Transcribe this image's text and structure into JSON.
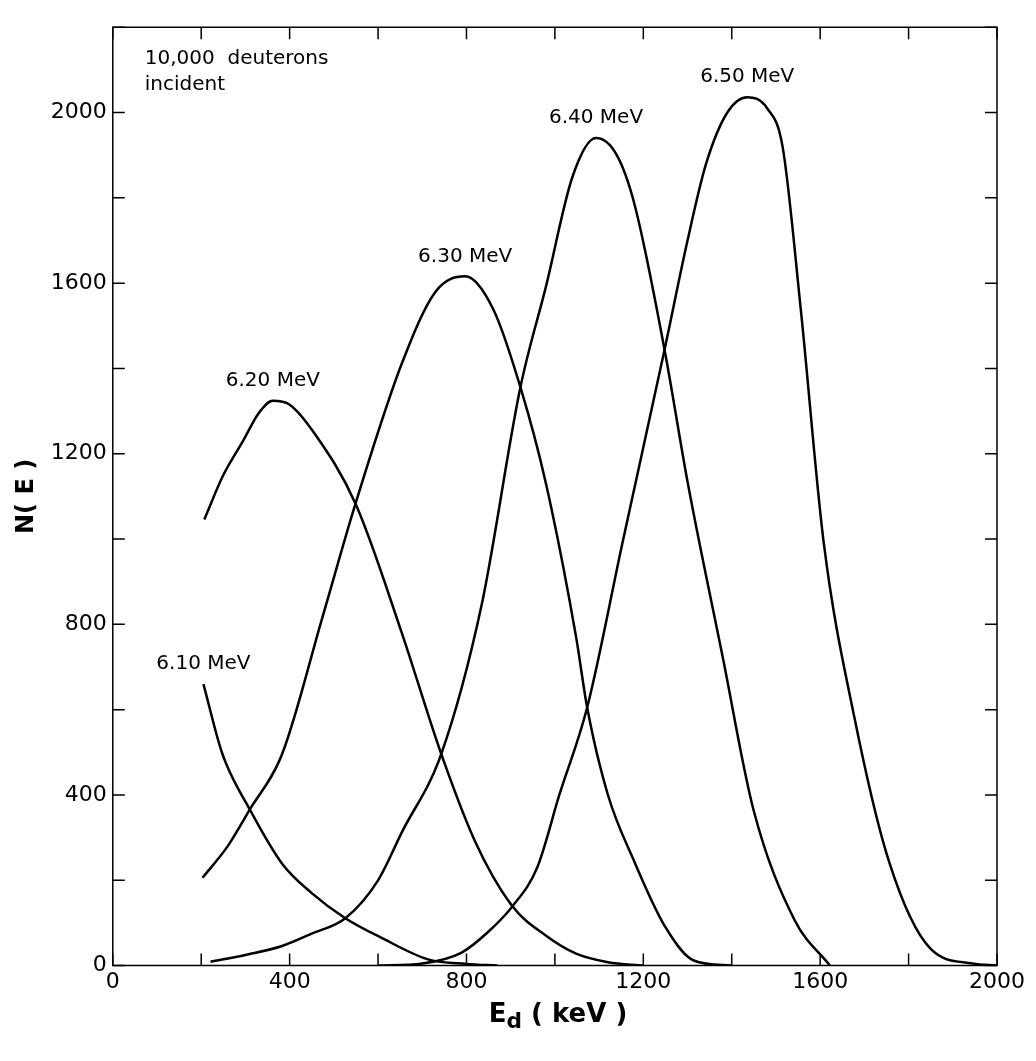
{
  "chart_data": {
    "type": "line",
    "xlabel": "E$_{d}$ ( keV )",
    "ylabel": "N( E )",
    "annotations": [
      "10,000  deuterons\nincident"
    ],
    "xlim": [
      0,
      2000
    ],
    "ylim": [
      0,
      2200
    ],
    "xticks": [
      0,
      {
        "value": 200,
        "label": null
      },
      400,
      {
        "value": 600,
        "label": null
      },
      800,
      {
        "value": 1000,
        "label": null
      },
      1200,
      {
        "value": 1400,
        "label": null
      },
      1600,
      {
        "value": 1800,
        "label": null
      },
      2000
    ],
    "yticks": [
      0,
      {
        "value": 200,
        "label": null
      },
      400,
      {
        "value": 600,
        "label": null
      },
      800,
      {
        "value": 1000,
        "label": null
      },
      1200,
      {
        "value": 1400,
        "label": null
      },
      1600,
      {
        "value": 1800,
        "label": null
      },
      2000,
      {
        "value": 2200,
        "label": null
      }
    ],
    "grid": false,
    "legend": false,
    "marker": "none",
    "line_style": "solid",
    "series": [
      {
        "name": "6.10 MeV",
        "color": "#000000",
        "x": [
          205,
          248,
          310,
          383,
          450,
          526,
          608,
          715,
          800,
          870
        ],
        "values": [
          660,
          496,
          366,
          239,
          170,
          111,
          65,
          14,
          4,
          0
        ]
      },
      {
        "name": "6.20 MeV",
        "color": "#000000",
        "x": [
          207,
          250,
          294,
          330,
          362,
          400,
          456,
          549,
          654,
          743,
          820,
          904,
          980,
          1048,
          1120,
          1200
        ],
        "values": [
          1046,
          1150,
          1229,
          1295,
          1324,
          1315,
          1248,
          1083,
          779,
          496,
          290,
          139,
          70,
          28,
          8,
          0
        ]
      },
      {
        "name": "6.30 MeV",
        "color": "#000000",
        "x": [
          203,
          260,
          310,
          383,
          474,
          549,
          654,
          730,
          797,
          860,
          922,
          980,
          1048,
          1073,
          1120,
          1180,
          1250,
          1314,
          1400
        ],
        "values": [
          206,
          280,
          366,
          496,
          816,
          1083,
          1412,
          1580,
          1616,
          1540,
          1356,
          1129,
          770,
          605,
          400,
          243,
          90,
          12,
          0
        ]
      },
      {
        "name": "6.40 MeV",
        "color": "#000000",
        "x": [
          221,
          300,
          383,
          450,
          526,
          600,
          654,
          743,
          834,
          922,
          980,
          1040,
          1093,
          1140,
          1180,
          1248,
          1301,
          1380,
          1449,
          1542,
          1622
        ],
        "values": [
          9,
          25,
          46,
          75,
          111,
          200,
          313,
          496,
          844,
          1356,
          1593,
          1850,
          1940,
          1900,
          1785,
          1444,
          1129,
          721,
          366,
          107,
          0
        ]
      },
      {
        "name": "6.50 MeV",
        "color": "#000000",
        "x": [
          599,
          700,
          788,
          850,
          904,
          960,
          1010,
          1073,
          1153,
          1248,
          1300,
          1342,
          1390,
          1435,
          1480,
          1515,
          1556,
          1608,
          1677,
          1756,
          1850,
          1945,
          2000
        ],
        "values": [
          0,
          5,
          30,
          80,
          139,
          230,
          400,
          605,
          992,
          1444,
          1700,
          1880,
          2000,
          2036,
          2010,
          1920,
          1540,
          992,
          584,
          243,
          39,
          5,
          0
        ]
      }
    ]
  }
}
